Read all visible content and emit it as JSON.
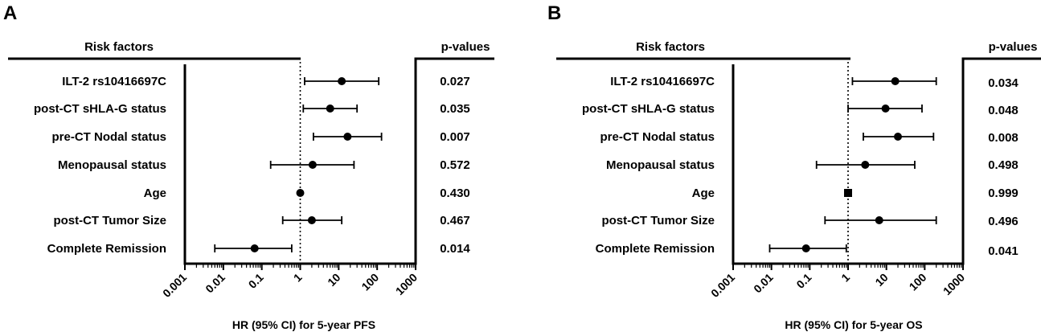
{
  "chart_data": [
    {
      "type": "forest",
      "panel_letter": "A",
      "header_left": "Risk factors",
      "header_right": "p-values",
      "xlabel": "HR (95% CI) for 5-year PFS",
      "xscale": "log",
      "xlim": [
        0.001,
        1000
      ],
      "xticks": [
        "0.001",
        "0.01",
        "0.1",
        "1",
        "10",
        "100",
        "1000"
      ],
      "reference_line": 1,
      "rows": [
        {
          "label": "ILT-2 rs10416697C",
          "hr": 12,
          "ci": [
            1.3,
            110
          ],
          "p": "0.027",
          "marker": "circle"
        },
        {
          "label": "post-CT sHLA-G status",
          "hr": 6,
          "ci": [
            1.2,
            30
          ],
          "p": "0.035",
          "marker": "circle"
        },
        {
          "label": "pre-CT Nodal status",
          "hr": 17,
          "ci": [
            2.2,
            130
          ],
          "p": "0.007",
          "marker": "circle"
        },
        {
          "label": "Menopausal status",
          "hr": 2.1,
          "ci": [
            0.17,
            25
          ],
          "p": "0.572",
          "marker": "circle"
        },
        {
          "label": "Age",
          "hr": 1.0,
          "ci": [
            0.95,
            1.05
          ],
          "p": "0.430",
          "marker": "circle"
        },
        {
          "label": "post-CT Tumor Size",
          "hr": 2.0,
          "ci": [
            0.35,
            12
          ],
          "p": "0.467",
          "marker": "circle"
        },
        {
          "label": "Complete Remission",
          "hr": 0.065,
          "ci": [
            0.006,
            0.6
          ],
          "p": "0.014",
          "marker": "circle"
        }
      ]
    },
    {
      "type": "forest",
      "panel_letter": "B",
      "header_left": "Risk factors",
      "header_right": "p-values",
      "xlabel": "HR (95% CI) for 5-year OS",
      "xscale": "log",
      "xlim": [
        0.001,
        1000
      ],
      "xticks": [
        "0.001",
        "0.01",
        "0.1",
        "1",
        "10",
        "100",
        "1000"
      ],
      "reference_line": 1,
      "rows": [
        {
          "label": "ILT-2 rs10416697C",
          "hr": 17,
          "ci": [
            1.3,
            200
          ],
          "p": "0.034",
          "marker": "circle"
        },
        {
          "label": "post-CT sHLA-G status",
          "hr": 9.5,
          "ci": [
            1.0,
            85
          ],
          "p": "0.048",
          "marker": "circle"
        },
        {
          "label": "pre-CT Nodal status",
          "hr": 20,
          "ci": [
            2.5,
            170
          ],
          "p": "0.008",
          "marker": "circle"
        },
        {
          "label": "Menopausal status",
          "hr": 2.8,
          "ci": [
            0.15,
            55
          ],
          "p": "0.498",
          "marker": "circle"
        },
        {
          "label": "Age",
          "hr": 1.0,
          "ci": [
            0.95,
            1.05
          ],
          "p": "0.999",
          "marker": "square"
        },
        {
          "label": "post-CT Tumor Size",
          "hr": 6.5,
          "ci": [
            0.25,
            200
          ],
          "p": "0.496",
          "marker": "circle"
        },
        {
          "label": "Complete Remission",
          "hr": 0.08,
          "ci": [
            0.009,
            0.9
          ],
          "p": "0.041",
          "marker": "circle"
        }
      ]
    }
  ]
}
